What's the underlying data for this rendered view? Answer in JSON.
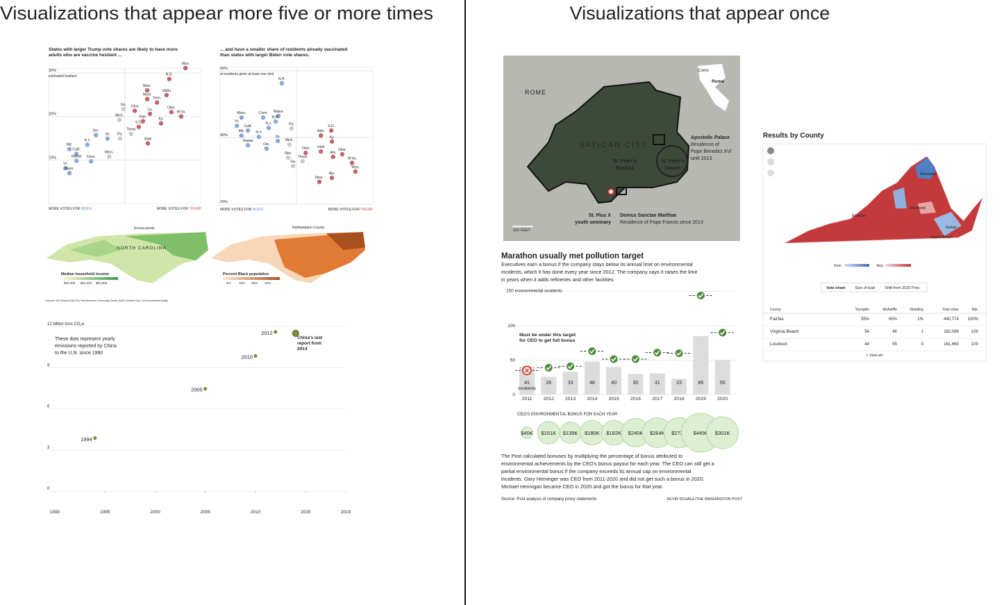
{
  "headings": {
    "left": "Visualizations that appear more five or more times",
    "right": "Visualizations that appear once"
  },
  "scatter_trump": {
    "title": [
      "States with larger Trump vote shares are likely to have more",
      "adults who are vaccine hesitant ..."
    ],
    "y_note": "estimated hesitant",
    "xlim": [
      25,
      75
    ],
    "ylim": [
      0,
      31
    ],
    "yticks": [
      {
        "value": 30,
        "label": "30%"
      },
      {
        "value": 20,
        "label": "20%"
      },
      {
        "value": 10,
        "label": "10%"
      }
    ],
    "x_left": {
      "text": "MORE VOTES FOR",
      "party": "BIDEN",
      "color": "#6f8fcf"
    },
    "x_right": {
      "text": "MORE VOTES FOR",
      "party": "TRUMP",
      "color": "#c0565c"
    },
    "points": [
      {
        "label": "Wyo.",
        "x": 69.8,
        "y": 31.1,
        "color": "#c0656a"
      },
      {
        "label": "N.D.",
        "x": 64.5,
        "y": 28.6,
        "color": "#c0656a"
      },
      {
        "label": "Miss.",
        "x": 57.3,
        "y": 26.0,
        "color": "#c0656a"
      },
      {
        "label": "Idaho",
        "x": 63.6,
        "y": 24.9,
        "color": "#c0656a"
      },
      {
        "label": "Mont.",
        "x": 57.3,
        "y": 24.0,
        "color": "#c0656a"
      },
      {
        "label": "Tenn.",
        "x": 60.5,
        "y": 23.2,
        "color": "#c0656a"
      },
      {
        "label": "Ga.",
        "x": 49.5,
        "y": 21.7,
        "color": "#c9c9c9"
      },
      {
        "label": "Ohio",
        "x": 53.2,
        "y": 21.3,
        "color": "#c0656a"
      },
      {
        "label": "La.",
        "x": 58.2,
        "y": 20.6,
        "color": "#c0656a"
      },
      {
        "label": "Okla.",
        "x": 65.2,
        "y": 21.0,
        "color": "#c0656a"
      },
      {
        "label": "W.Va.",
        "x": 68.4,
        "y": 20.0,
        "color": "#c0656a"
      },
      {
        "label": "Mich.",
        "x": 48.2,
        "y": 19.2,
        "color": "#c9c9c9"
      },
      {
        "label": "Kan.",
        "x": 55.9,
        "y": 18.9,
        "color": "#c0656a"
      },
      {
        "label": "Ky.",
        "x": 61.8,
        "y": 18.4,
        "color": "#c0656a"
      },
      {
        "label": "S.C.",
        "x": 54.5,
        "y": 17.6,
        "color": "#c0656a"
      },
      {
        "label": "Ore.",
        "x": 40.5,
        "y": 15.7,
        "color": "#8ea6d4"
      },
      {
        "label": "Va.",
        "x": 44.3,
        "y": 14.9,
        "color": "#8ea6d4"
      },
      {
        "label": "Texas",
        "x": 52.0,
        "y": 16.0,
        "color": "#c9c9c9"
      },
      {
        "label": "Pa.",
        "x": 48.4,
        "y": 14.9,
        "color": "#c9c9c9"
      },
      {
        "label": "Utah",
        "x": 57.5,
        "y": 13.8,
        "color": "#c0656a"
      },
      {
        "label": "N.Y.",
        "x": 37.7,
        "y": 13.5,
        "color": "#8ea6d4"
      },
      {
        "label": "Md.",
        "x": 31.8,
        "y": 12.5,
        "color": "#8ea6d4"
      },
      {
        "label": "Calif.",
        "x": 34.1,
        "y": 11.4,
        "color": "#8ea6d4"
      },
      {
        "label": "Minn.",
        "x": 44.8,
        "y": 10.8,
        "color": "#c9c9c9"
      },
      {
        "label": "Hawaii",
        "x": 34.1,
        "y": 9.8,
        "color": "#8ea6d4"
      },
      {
        "label": "Conn.",
        "x": 38.9,
        "y": 9.7,
        "color": "#8ea6d4"
      },
      {
        "label": "Vt.",
        "x": 30.5,
        "y": 8.1,
        "color": "#8ea6d4"
      },
      {
        "label": "Mass.",
        "x": 31.8,
        "y": 7.0,
        "color": "#8ea6d4"
      }
    ]
  },
  "scatter_biden": {
    "title": [
      "... and have a smaller share of residents already vaccinated",
      "than states with larger Biden vote shares."
    ],
    "y_note": "of residents given at least one shot",
    "xlim": [
      25,
      75
    ],
    "ylim": [
      20,
      61
    ],
    "yticks": [
      {
        "value": 60,
        "label": "60%"
      },
      {
        "value": 40,
        "label": "40%"
      },
      {
        "value": 20,
        "label": "20%"
      }
    ],
    "x_left": {
      "text": "MORE VOTES FOR",
      "party": "BIDEN",
      "color": "#6f8fcf"
    },
    "x_right": {
      "text": "MORE VOTES FOR",
      "party": "TRUMP",
      "color": "#c0565c"
    },
    "points": [
      {
        "label": "N.H.",
        "x": 45.2,
        "y": 56.3,
        "color": "#8ea6d4"
      },
      {
        "label": "Mass.",
        "x": 32.0,
        "y": 46.0,
        "color": "#8ea6d4"
      },
      {
        "label": "Conn.",
        "x": 39.1,
        "y": 46.0,
        "color": "#8ea6d4"
      },
      {
        "label": "Maine",
        "x": 44.1,
        "y": 46.5,
        "color": "#8ea6d4"
      },
      {
        "label": "N.M.",
        "x": 43.2,
        "y": 44.8,
        "color": "#8ea6d4"
      },
      {
        "label": "Vt.",
        "x": 30.5,
        "y": 43.5,
        "color": "#8ea6d4"
      },
      {
        "label": "N.J.",
        "x": 40.9,
        "y": 42.9,
        "color": "#8ea6d4"
      },
      {
        "label": "Calif.",
        "x": 34.1,
        "y": 42.1,
        "color": "#8ea6d4"
      },
      {
        "label": "Md.",
        "x": 32.0,
        "y": 40.6,
        "color": "#8ea6d4"
      },
      {
        "label": "N.Y.",
        "x": 37.7,
        "y": 40.2,
        "color": "#8ea6d4"
      },
      {
        "label": "Pa.",
        "x": 48.4,
        "y": 42.7,
        "color": "#c9c9c9"
      },
      {
        "label": "Va.",
        "x": 43.9,
        "y": 39.0,
        "color": "#8ea6d4"
      },
      {
        "label": "Hawaii",
        "x": 34.1,
        "y": 37.7,
        "color": "#8ea6d4"
      },
      {
        "label": "Ore.",
        "x": 40.2,
        "y": 36.7,
        "color": "#8ea6d4"
      },
      {
        "label": "Mich.",
        "x": 47.7,
        "y": 37.9,
        "color": "#c9c9c9"
      },
      {
        "label": "Neb.",
        "x": 58.0,
        "y": 40.6,
        "color": "#c0656a"
      },
      {
        "label": "S.D.",
        "x": 61.4,
        "y": 42.1,
        "color": "#c0656a"
      },
      {
        "label": "Ky.",
        "x": 61.6,
        "y": 38.8,
        "color": "#c0656a"
      },
      {
        "label": "Ohio",
        "x": 53.0,
        "y": 35.4,
        "color": "#c0656a"
      },
      {
        "label": "Utah",
        "x": 58.0,
        "y": 35.8,
        "color": "#c0656a"
      },
      {
        "label": "Nev.",
        "x": 47.3,
        "y": 34.0,
        "color": "#c9c9c9"
      },
      {
        "label": "Okla.",
        "x": 65.0,
        "y": 35.0,
        "color": "#c0656a"
      },
      {
        "label": "Texas",
        "x": 52.0,
        "y": 32.9,
        "color": "#c9c9c9"
      },
      {
        "label": "Ark.",
        "x": 62.0,
        "y": 34.2,
        "color": "#c0656a"
      },
      {
        "label": "Ga.",
        "x": 48.9,
        "y": 31.5,
        "color": "#c9c9c9"
      },
      {
        "label": "W.Va.",
        "x": 68.2,
        "y": 32.4,
        "color": "#c0656a"
      },
      {
        "label": "Ala.",
        "x": 61.6,
        "y": 27.9,
        "color": "#c0656a"
      },
      {
        "label": "Wyo.",
        "x": 69.3,
        "y": 29.8,
        "color": "#c0656a"
      },
      {
        "label": "Miss.",
        "x": 57.5,
        "y": 26.7,
        "color": "#c0656a"
      }
    ]
  },
  "nc_maps": {
    "income": {
      "annotation": "Enviva plants",
      "state": "NORTH CAROLINA",
      "legend_title": "Median household income",
      "legend_labels": [
        "$40,000",
        "$51,000",
        "$61,000"
      ]
    },
    "black_population": {
      "annotation": "Northampton County",
      "legend_title": "Percent Black population",
      "legend_labels": [
        "6%",
        "16%",
        "26%",
        "42%"
      ]
    },
    "source": "Sources: US Census 2018 Five-Year American Community Survey, North Carolina Dept. of Environmental Quality"
  },
  "china": {
    "x": [
      1994,
      2005,
      2010,
      2012,
      2014
    ],
    "values": [
      3.86,
      7.46,
      9.85,
      11.6,
      11.5
    ],
    "color": "#7d8f3c",
    "xlim": [
      1990,
      2019
    ],
    "xticks": [
      1990,
      1995,
      2000,
      2005,
      2010,
      2015,
      2019
    ],
    "ylim": [
      0,
      12
    ],
    "yticks": [
      0,
      3,
      6,
      9,
      {
        "value": 12,
        "label": "12 billion tons CO₂e"
      }
    ],
    "note": [
      "These dots represent yearly",
      "emissions reported by China",
      "to the U.N. since 1990"
    ],
    "annotation": [
      "China's last",
      "report from",
      "2014"
    ]
  },
  "vatican": {
    "rome": "ROME",
    "city": "VATICAN CITY",
    "basilica": [
      "St. Peter's",
      "Basilica"
    ],
    "square": [
      "St. Peter's",
      "Square"
    ],
    "palace": "Apostolic Palace",
    "palace_note": [
      "Residence of",
      "Pope Benedict XVI",
      "until 2013"
    ],
    "seminary": [
      "St. Pius X",
      "youth seminary"
    ],
    "domus": "Domus Sanctae Marthae",
    "domus_note": "Residence of Pope Francis since 2013",
    "scale": "500 FEET",
    "inset_como": "Como",
    "inset_rome": "Rome"
  },
  "marathon": {
    "title": "Marathon usually met pollution target",
    "subtitle": [
      "Executives earn a bonus if the company stays below its annual limit on environmental",
      "incidents, which it has done every year since 2012. The company says it raises the limit",
      "in years when it adds refineries and other facilities."
    ],
    "categories": [
      "2011",
      "2012",
      "2013",
      "2014",
      "2015",
      "2016",
      "2017",
      "2018",
      "2019",
      "2020"
    ],
    "values": [
      41,
      26,
      33,
      48,
      40,
      30,
      31,
      23,
      85,
      50
    ],
    "unit_label": "incidents",
    "limits": [
      35,
      39,
      41,
      63,
      51.5,
      51.5,
      61,
      60,
      144,
      90
    ],
    "ylim": [
      0,
      150
    ],
    "yticks": [
      0,
      50,
      100,
      {
        "value": 150,
        "label": "150 environmental incidents"
      }
    ],
    "target_note": [
      "Must be under this target",
      "for CEO to get full bonus"
    ],
    "bonus_title": "CEO'S ENVIRONMENTAL BONUS FOR EACH YEAR",
    "bonus": [
      40,
      151,
      135,
      180,
      182,
      240,
      264,
      272,
      449,
      301
    ],
    "bonus_labels": [
      "$40K",
      "$151K",
      "$135K",
      "$180K",
      "$182K",
      "$240K",
      "$264K",
      "$272K",
      "$449K",
      "$301K"
    ],
    "footer": [
      "The Post calculated bonuses by multiplying the percentage of bonus attributed to",
      "environmental achievements by the CEO's bonus payout for each year. The CEO can still get a",
      "partial environmental bonus if the company exceeds its annual cap on environmental",
      "incidents. Gary Heminger was CEO from 2011-2020 and did not get such a bonus in 2020;",
      "Michael Hennigan became CEO in 2020 and got the bonus for that year."
    ],
    "source": "Source: Post analysis of company proxy statements",
    "credit": "KEVIN SCHAUL/THE WASHINGTON POST"
  },
  "virginia": {
    "title": "Results by County",
    "places": [
      "Alexandria",
      "Roanoke",
      "Richmond",
      "Norfolk",
      "Virginia Beach"
    ],
    "legend": [
      "Dem.",
      "Rep."
    ],
    "tabs": [
      "Vote share",
      "Size of lead",
      "Shift from 2020 Pres."
    ],
    "table": {
      "header": [
        "County",
        "Youngkin",
        "McAuliffe",
        "Standing",
        "Total votes",
        "Rpt."
      ],
      "rows": [
        [
          "Fairfax",
          "35%",
          "65%",
          "1%",
          "440,774",
          "100%"
        ],
        [
          "Virginia Beach",
          "54",
          "46",
          "1",
          "162,098",
          "100"
        ],
        [
          "Loudoun",
          "44",
          "55",
          "0",
          "161,660",
          "100"
        ]
      ]
    },
    "view_all": "+ View all"
  }
}
